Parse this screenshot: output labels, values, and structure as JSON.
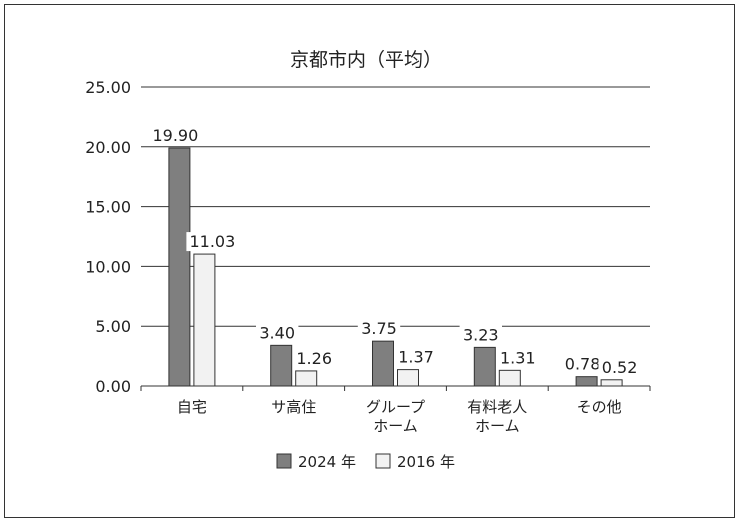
{
  "chart_data": {
    "type": "bar",
    "title": "京都市内（平均）",
    "categories": [
      [
        "自宅"
      ],
      [
        "サ高住"
      ],
      [
        "グループ",
        "ホーム"
      ],
      [
        "有料老人",
        "ホーム"
      ],
      [
        "その他"
      ]
    ],
    "series": [
      {
        "name": "2024 年",
        "values": [
          19.9,
          3.4,
          3.75,
          3.23,
          0.78
        ],
        "labels": [
          "19.90",
          "3.40",
          "3.75",
          "3.23",
          "0.78"
        ],
        "color": "#7f7f7f"
      },
      {
        "name": "2016 年",
        "values": [
          11.03,
          1.26,
          1.37,
          1.31,
          0.52
        ],
        "labels": [
          "11.03",
          "1.26",
          "1.37",
          "1.31",
          "0.52"
        ],
        "color": "#f2f2f2"
      }
    ],
    "yticks": [
      "0.00",
      "5.00",
      "10.00",
      "15.00",
      "20.00",
      "25.00"
    ],
    "ylim": [
      0,
      25
    ],
    "grid": true,
    "legend_position": "bottom",
    "xlabel": "",
    "ylabel": ""
  }
}
